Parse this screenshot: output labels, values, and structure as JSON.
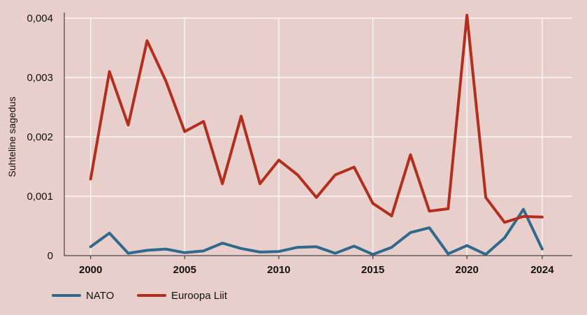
{
  "colors": {
    "background": "#e8cfcc",
    "grid": "#ffffff",
    "axis": "#222222",
    "nato": "#2f6a8c",
    "eu": "#b22f20"
  },
  "chart_data": {
    "type": "line",
    "title": "",
    "xlabel": "",
    "ylabel": "Suhteline sagedus",
    "x": [
      2000,
      2001,
      2002,
      2003,
      2004,
      2005,
      2006,
      2007,
      2008,
      2009,
      2010,
      2011,
      2012,
      2013,
      2014,
      2015,
      2016,
      2017,
      2018,
      2019,
      2020,
      2021,
      2022,
      2023,
      2024
    ],
    "xlim": [
      1998.6,
      2025.6
    ],
    "ylim": [
      0,
      0.004
    ],
    "x_ticks": [
      2000,
      2005,
      2010,
      2015,
      2020,
      2024
    ],
    "x_tick_labels": [
      "2000",
      "2005",
      "2010",
      "2015",
      "2020",
      "2024"
    ],
    "y_ticks": [
      0,
      0.001,
      0.002,
      0.003,
      0.004
    ],
    "y_tick_labels": [
      "0",
      "0,001",
      "0,002",
      "0,003",
      "0,004"
    ],
    "grid": "vertical-and-horizontal",
    "legend_position": "bottom-left",
    "series": [
      {
        "name": "NATO",
        "color": "#2f6a8c",
        "values": [
          0.00015,
          0.00038,
          4e-05,
          9e-05,
          0.00011,
          5e-05,
          8e-05,
          0.00021,
          0.00012,
          6e-05,
          7e-05,
          0.00014,
          0.00015,
          4e-05,
          0.00016,
          2e-05,
          0.00014,
          0.00039,
          0.00047,
          3e-05,
          0.00017,
          2e-05,
          0.0003,
          0.00078,
          0.00011
        ]
      },
      {
        "name": "Euroopa Liit",
        "color": "#b22f20",
        "values": [
          0.00129,
          0.0031,
          0.0022,
          0.00362,
          0.00294,
          0.00209,
          0.00226,
          0.00121,
          0.00235,
          0.00121,
          0.00161,
          0.00136,
          0.00098,
          0.00136,
          0.00149,
          0.00088,
          0.00067,
          0.0017,
          0.00075,
          0.00079,
          0.00405,
          0.00098,
          0.00056,
          0.00066,
          0.00065
        ]
      }
    ]
  }
}
